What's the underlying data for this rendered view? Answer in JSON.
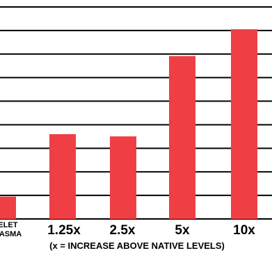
{
  "chart_data": {
    "type": "bar",
    "categories": [
      "TELET PLASMA",
      "1.25x",
      "2.5x",
      "5x",
      "10x"
    ],
    "values": [
      1,
      3.8,
      3.7,
      7.3,
      8.5
    ],
    "ylim": [
      0,
      9.5
    ],
    "grid": true,
    "bar_color": "#ef3f45",
    "grid_color": "#000000",
    "xlabel": "(x = INCREASE ABOVE NATIVE LEVELS)",
    "first_label_lines": [
      "TELET",
      "PLASMA"
    ]
  }
}
